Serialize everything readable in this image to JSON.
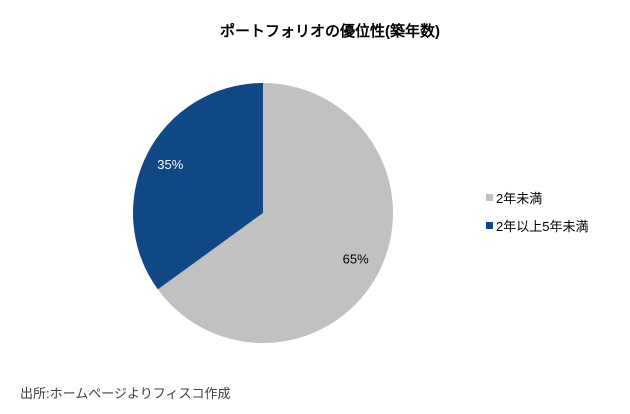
{
  "title": "ポートフォリオの優位性(築年数)",
  "source_note": "出所:ホームページよりフィスコ作成",
  "colors": {
    "background": "#ffffff",
    "gray_slice": "#c1c1c1",
    "blue_slice": "#104785",
    "source_text": "#404040",
    "title_text": "#000000"
  },
  "chart_data": {
    "type": "pie",
    "title": "ポートフォリオの優位性(築年数)",
    "start_angle_deg": 0,
    "direction": "clockwise",
    "legend_position": "right",
    "slices": [
      {
        "label": "2年未満",
        "value": 65,
        "percent_label": "65%",
        "color": "#c1c1c1",
        "percent_label_color": "#000000"
      },
      {
        "label": "2年以上5年未満",
        "value": 35,
        "percent_label": "35%",
        "color": "#104785",
        "percent_label_color": "#ffffff"
      }
    ]
  }
}
